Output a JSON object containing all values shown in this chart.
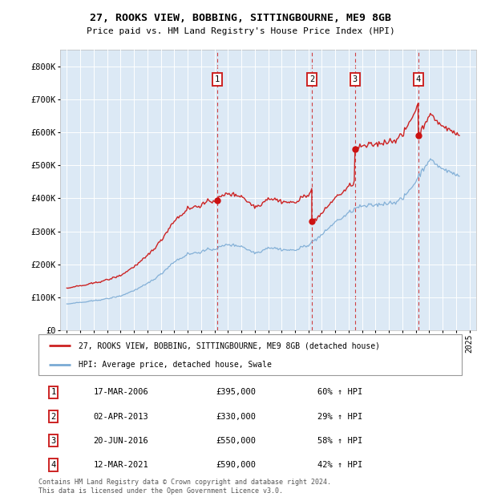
{
  "title1": "27, ROOKS VIEW, BOBBING, SITTINGBOURNE, ME9 8GB",
  "title2": "Price paid vs. HM Land Registry's House Price Index (HPI)",
  "background_color": "#dce9f5",
  "legend_line1": "27, ROOKS VIEW, BOBBING, SITTINGBOURNE, ME9 8GB (detached house)",
  "legend_line2": "HPI: Average price, detached house, Swale",
  "footer": "Contains HM Land Registry data © Crown copyright and database right 2024.\nThis data is licensed under the Open Government Licence v3.0.",
  "transactions": [
    {
      "num": 1,
      "date": "17-MAR-2006",
      "price": 395000,
      "pct": "60%",
      "year": 2006.21
    },
    {
      "num": 2,
      "date": "02-APR-2013",
      "price": 330000,
      "pct": "29%",
      "year": 2013.25
    },
    {
      "num": 3,
      "date": "20-JUN-2016",
      "price": 550000,
      "pct": "58%",
      "year": 2016.47
    },
    {
      "num": 4,
      "date": "12-MAR-2021",
      "price": 590000,
      "pct": "42%",
      "year": 2021.19
    }
  ],
  "xlim": [
    1994.5,
    2025.5
  ],
  "ylim": [
    0,
    850000
  ],
  "yticks": [
    0,
    100000,
    200000,
    300000,
    400000,
    500000,
    600000,
    700000,
    800000
  ],
  "ytick_labels": [
    "£0",
    "£100K",
    "£200K",
    "£300K",
    "£400K",
    "£500K",
    "£600K",
    "£700K",
    "£800K"
  ]
}
